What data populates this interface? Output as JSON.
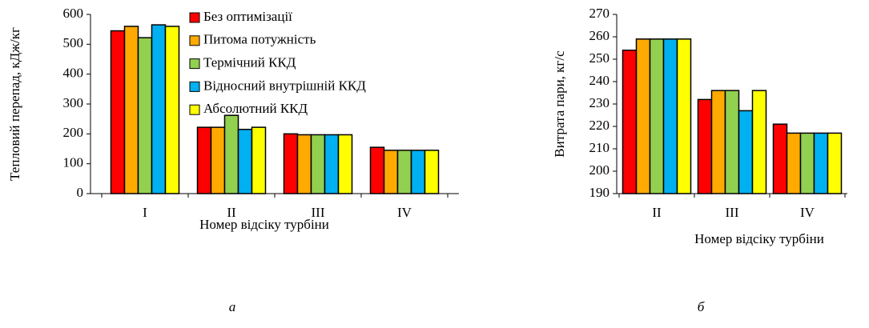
{
  "chart_data": [
    {
      "type": "bar",
      "caption": "а",
      "x_label": "Номер відсіку  турбіни",
      "y_label": "Тепловий перепад, кДж/кг",
      "categories": [
        "I",
        "II",
        "III",
        "IV"
      ],
      "series": [
        {
          "name": "Без оптимізації",
          "color": "#ff0000",
          "values": [
            545,
            222,
            200,
            155
          ]
        },
        {
          "name": "Питома потужність",
          "color": "#ffaa00",
          "values": [
            560,
            222,
            197,
            145
          ]
        },
        {
          "name": "Термічний ККД",
          "color": "#92d050",
          "values": [
            522,
            262,
            197,
            145
          ]
        },
        {
          "name": "Відносний внутрішній  ККД",
          "color": "#00b0f0",
          "values": [
            565,
            215,
            197,
            145
          ]
        },
        {
          "name": "Абсолютний ККД",
          "color": "#ffff00",
          "values": [
            560,
            222,
            197,
            145
          ]
        }
      ],
      "ylim": [
        0,
        600
      ],
      "yticks": [
        0,
        100,
        200,
        300,
        400,
        500,
        600
      ],
      "legend": "top-left"
    },
    {
      "type": "bar",
      "caption": "б",
      "x_label": "Номер відсіку  турбіни",
      "y_label": "Витрата пари, кг/с",
      "categories": [
        "II",
        "III",
        "IV"
      ],
      "series": [
        {
          "color": "#ff0000",
          "values": [
            254,
            232,
            221
          ]
        },
        {
          "color": "#ffaa00",
          "values": [
            259,
            236,
            217
          ]
        },
        {
          "color": "#92d050",
          "values": [
            259,
            236,
            217
          ]
        },
        {
          "color": "#00b0f0",
          "values": [
            259,
            227,
            217
          ]
        },
        {
          "color": "#ffff00",
          "values": [
            259,
            236,
            217
          ]
        }
      ],
      "ylim": [
        190,
        270
      ],
      "yticks": [
        190,
        200,
        210,
        220,
        230,
        240,
        250,
        260,
        270
      ]
    }
  ]
}
